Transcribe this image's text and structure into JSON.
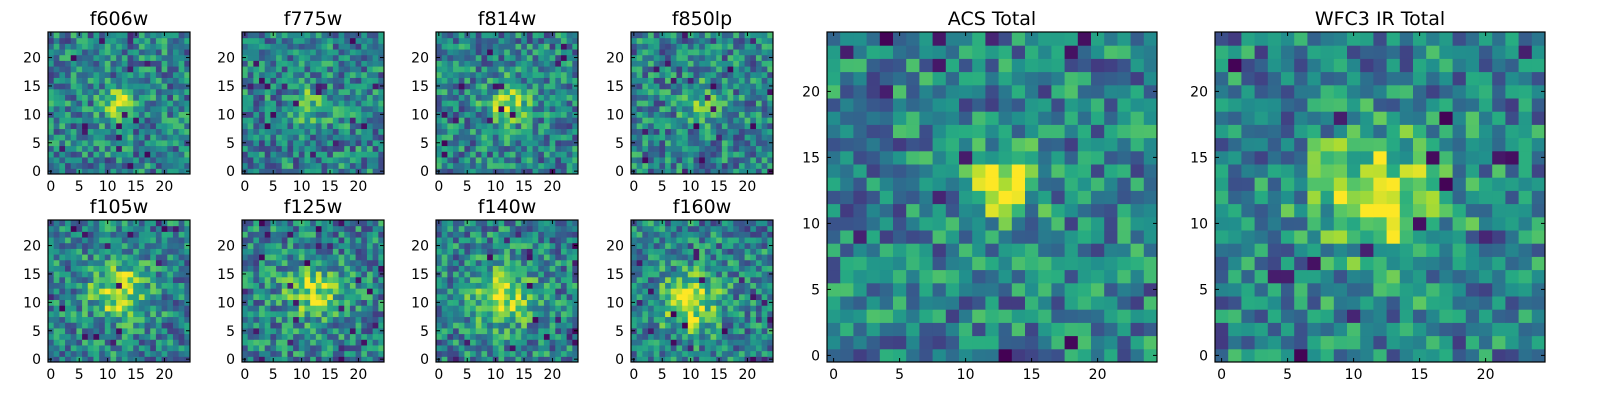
{
  "chart_data": [
    {
      "type": "heatmap",
      "title": "f606w",
      "grid_size": 25,
      "xlim": [
        0,
        24
      ],
      "ylim": [
        0,
        24
      ],
      "x_ticks": [
        0,
        5,
        10,
        15,
        20
      ],
      "y_ticks": [
        0,
        5,
        10,
        15,
        20
      ],
      "colormap": "viridis",
      "blob": {
        "cx": 12,
        "cy": 12,
        "sigma": 2.0,
        "amp": 0.45
      },
      "noise_seed": 11,
      "dark_frac": 0.03
    },
    {
      "type": "heatmap",
      "title": "f775w",
      "grid_size": 25,
      "xlim": [
        0,
        24
      ],
      "ylim": [
        0,
        24
      ],
      "x_ticks": [
        0,
        5,
        10,
        15,
        20
      ],
      "y_ticks": [
        0,
        5,
        10,
        15,
        20
      ],
      "colormap": "viridis",
      "blob": {
        "cx": 12,
        "cy": 12,
        "sigma": 2.5,
        "amp": 0.25
      },
      "noise_seed": 23,
      "dark_frac": 0.025
    },
    {
      "type": "heatmap",
      "title": "f814w",
      "grid_size": 25,
      "xlim": [
        0,
        24
      ],
      "ylim": [
        0,
        24
      ],
      "x_ticks": [
        0,
        5,
        10,
        15,
        20
      ],
      "y_ticks": [
        0,
        5,
        10,
        15,
        20
      ],
      "colormap": "viridis",
      "blob": {
        "cx": 12,
        "cy": 12,
        "sigma": 2.5,
        "amp": 0.45
      },
      "noise_seed": 37,
      "dark_frac": 0.025
    },
    {
      "type": "heatmap",
      "title": "f850lp",
      "grid_size": 25,
      "xlim": [
        0,
        24
      ],
      "ylim": [
        0,
        24
      ],
      "x_ticks": [
        0,
        5,
        10,
        15,
        20
      ],
      "y_ticks": [
        0,
        5,
        10,
        15,
        20
      ],
      "colormap": "viridis",
      "blob": {
        "cx": 12,
        "cy": 12,
        "sigma": 2.5,
        "amp": 0.25
      },
      "noise_seed": 41,
      "dark_frac": 0.03
    },
    {
      "type": "heatmap",
      "title": "f105w",
      "grid_size": 25,
      "xlim": [
        0,
        24
      ],
      "ylim": [
        0,
        24
      ],
      "x_ticks": [
        0,
        5,
        10,
        15,
        20
      ],
      "y_ticks": [
        0,
        5,
        10,
        15,
        20
      ],
      "colormap": "viridis",
      "blob": {
        "cx": 12,
        "cy": 12,
        "sigma": 3.5,
        "amp": 0.45
      },
      "noise_seed": 53,
      "dark_frac": 0.025
    },
    {
      "type": "heatmap",
      "title": "f125w",
      "grid_size": 25,
      "xlim": [
        0,
        24
      ],
      "ylim": [
        0,
        24
      ],
      "x_ticks": [
        0,
        5,
        10,
        15,
        20
      ],
      "y_ticks": [
        0,
        5,
        10,
        15,
        20
      ],
      "colormap": "viridis",
      "blob": {
        "cx": 12,
        "cy": 12,
        "sigma": 3.5,
        "amp": 0.4
      },
      "noise_seed": 67,
      "dark_frac": 0.035
    },
    {
      "type": "heatmap",
      "title": "f140w",
      "grid_size": 25,
      "xlim": [
        0,
        24
      ],
      "ylim": [
        0,
        24
      ],
      "x_ticks": [
        0,
        5,
        10,
        15,
        20
      ],
      "y_ticks": [
        0,
        5,
        10,
        15,
        20
      ],
      "colormap": "viridis",
      "blob": {
        "cx": 11,
        "cy": 11,
        "sigma": 3.5,
        "amp": 0.5
      },
      "noise_seed": 79,
      "dark_frac": 0.035
    },
    {
      "type": "heatmap",
      "title": "f160w",
      "grid_size": 25,
      "xlim": [
        0,
        24
      ],
      "ylim": [
        0,
        24
      ],
      "x_ticks": [
        0,
        5,
        10,
        15,
        20
      ],
      "y_ticks": [
        0,
        5,
        10,
        15,
        20
      ],
      "colormap": "viridis",
      "blob": {
        "cx": 10,
        "cy": 10,
        "sigma": 3.5,
        "amp": 0.5
      },
      "noise_seed": 83,
      "dark_frac": 0.03
    },
    {
      "type": "heatmap",
      "title": "ACS Total",
      "grid_size": 25,
      "xlim": [
        0,
        24
      ],
      "ylim": [
        0,
        24
      ],
      "x_ticks": [
        0,
        5,
        10,
        15,
        20
      ],
      "y_ticks": [
        0,
        5,
        10,
        15,
        20
      ],
      "colormap": "viridis",
      "blob": {
        "cx": 13,
        "cy": 13,
        "sigma": 1.8,
        "amp": 0.55
      },
      "noise_seed": 97,
      "dark_frac": 0.03
    },
    {
      "type": "heatmap",
      "title": "WFC3 IR Total",
      "grid_size": 25,
      "xlim": [
        0,
        24
      ],
      "ylim": [
        0,
        24
      ],
      "x_ticks": [
        0,
        5,
        10,
        15,
        20
      ],
      "y_ticks": [
        0,
        5,
        10,
        15,
        20
      ],
      "colormap": "viridis",
      "blob": {
        "cx": 12,
        "cy": 12,
        "sigma": 3.5,
        "amp": 0.5
      },
      "noise_seed": 101,
      "dark_frac": 0.025
    }
  ]
}
